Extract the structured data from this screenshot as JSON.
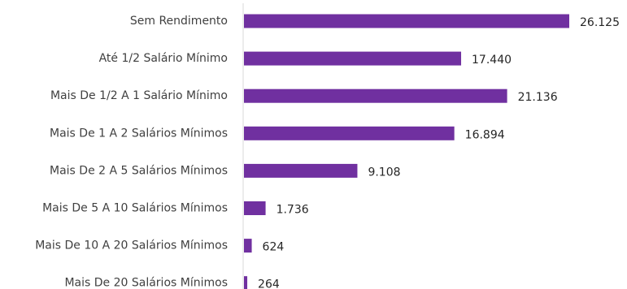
{
  "chart_data": {
    "type": "bar",
    "orientation": "horizontal",
    "categories": [
      "Sem Rendimento",
      "Até 1/2 Salário Mínimo",
      "Mais De 1/2 A 1 Salário Mínimo",
      "Mais De 1 A 2 Salários Mínimos",
      "Mais De 2 A 5 Salários Mínimos",
      "Mais De 5 A 10 Salários Mínimos",
      "Mais De 10 A 20 Salários Mínimos",
      "Mais De 20 Salários Mínimos"
    ],
    "values": [
      26125,
      17440,
      21136,
      16894,
      9108,
      1736,
      624,
      264
    ],
    "value_labels": [
      "26.125",
      "17.440",
      "21.136",
      "16.894",
      "9.108",
      "1.736",
      "624",
      "264"
    ],
    "title": "",
    "xlabel": "",
    "ylabel": "",
    "xlim": [
      0,
      26125
    ],
    "grid": false,
    "bar_color": "#7030a0",
    "axis_color": "#d9d9d9"
  }
}
